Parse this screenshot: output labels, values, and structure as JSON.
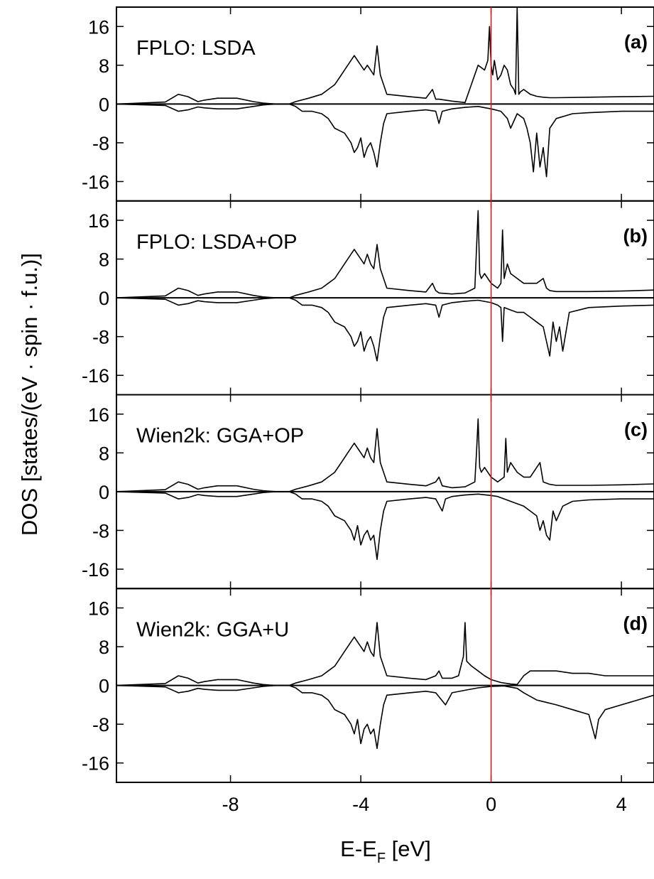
{
  "chart_data": {
    "type": "line",
    "xlabel": "E-E",
    "xlabel_sub": "F",
    "xlabel_unit": " [eV]",
    "ylabel": "DOS [states/(eV · spin · f.u.)]",
    "xlim": [
      -11.5,
      5
    ],
    "ylim": [
      -20,
      20
    ],
    "xticks": [
      -8,
      -4,
      0,
      4
    ],
    "yticks": [
      16,
      8,
      0,
      -8,
      -16
    ],
    "grid": false,
    "fermi_line": {
      "x": 0,
      "color": "#d62020"
    },
    "panels": [
      {
        "label": "FPLO: LSDA",
        "tag": "(a)",
        "series": [
          {
            "x": [
              -11.5,
              -10,
              -9.6,
              -9.3,
              -9,
              -8.8,
              -8.4,
              -7.8,
              -7.3,
              -7,
              -6.6,
              -6.2,
              -6,
              -5.6,
              -5.2,
              -5,
              -4.8,
              -4.6,
              -4.4,
              -4.2,
              -4.1,
              -4,
              -3.9,
              -3.8,
              -3.7,
              -3.6,
              -3.5,
              -3.4,
              -3.3,
              -3.2,
              -2.5,
              -2,
              -1.8,
              -1.7,
              -1.6,
              -1.2,
              -0.8,
              -0.4,
              -0.2,
              -0.1,
              -0.05,
              0,
              0.05,
              0.1,
              0.2,
              0.3,
              0.4,
              0.5,
              0.6,
              0.7,
              0.75,
              0.8,
              0.85,
              0.9,
              1,
              1.2,
              1.4,
              1.6,
              1.8,
              2,
              3,
              4,
              5
            ],
            "values": [
              0,
              0.4,
              2,
              1.5,
              0.5,
              0.8,
              1.2,
              1.2,
              0.5,
              0.2,
              0,
              0,
              0.5,
              1.2,
              2,
              3,
              4,
              6,
              8,
              10,
              9,
              8,
              7,
              8,
              7,
              6,
              12,
              6,
              4,
              2,
              1.5,
              1.2,
              3,
              1,
              1,
              0.6,
              0.3,
              8,
              7,
              9,
              16,
              8,
              6,
              9,
              5,
              6,
              8,
              7,
              4,
              3,
              2,
              20,
              2,
              2.5,
              3,
              2,
              1.6,
              1.4,
              1.3,
              1.3,
              1.4,
              1.5,
              1.6
            ]
          },
          {
            "x": [
              -11.5,
              -10,
              -9.6,
              -9.3,
              -9,
              -8.8,
              -8.4,
              -7.8,
              -7.3,
              -7,
              -6.6,
              -6.2,
              -6,
              -5.8,
              -5.5,
              -5.2,
              -5,
              -4.8,
              -4.5,
              -4.3,
              -4.2,
              -4.1,
              -4,
              -3.9,
              -3.8,
              -3.7,
              -3.6,
              -3.5,
              -3.4,
              -3.3,
              -3.2,
              -2.5,
              -2,
              -1.7,
              -1.6,
              -1.5,
              -1.2,
              -0.8,
              -0.4,
              0,
              0.3,
              0.5,
              0.6,
              0.8,
              1,
              1.1,
              1.2,
              1.3,
              1.4,
              1.5,
              1.6,
              1.7,
              1.8,
              2,
              2.5,
              3,
              4,
              5
            ],
            "values": [
              0,
              -0.3,
              -1.5,
              -1.2,
              -0.6,
              -0.8,
              -1,
              -1,
              -0.5,
              -0.2,
              0,
              0,
              -0.5,
              -1.5,
              -1.5,
              -2,
              -3,
              -5,
              -6,
              -8,
              -10,
              -9,
              -7,
              -11,
              -9,
              -8,
              -10,
              -13,
              -8,
              -4,
              -2,
              -1.5,
              -1.2,
              -1.5,
              -4,
              -1.5,
              -1,
              -0.7,
              -0.5,
              -1,
              -1.5,
              -3,
              -5,
              -2,
              -3,
              -5,
              -8,
              -14,
              -6,
              -13,
              -9,
              -15,
              -5,
              -3,
              -2,
              -1.8,
              -1.5,
              -1.5
            ]
          }
        ]
      },
      {
        "label": "FPLO: LSDA+OP",
        "tag": "(b)",
        "series": [
          {
            "x": [
              -11.5,
              -10,
              -9.6,
              -9.3,
              -9,
              -8.8,
              -8.4,
              -7.8,
              -7.3,
              -7,
              -6.6,
              -6.2,
              -6,
              -5.6,
              -5.2,
              -5,
              -4.8,
              -4.6,
              -4.4,
              -4.2,
              -4.1,
              -4,
              -3.9,
              -3.8,
              -3.7,
              -3.6,
              -3.5,
              -3.4,
              -3.3,
              -3.2,
              -2.5,
              -2,
              -1.8,
              -1.7,
              -1.6,
              -1.2,
              -0.8,
              -0.5,
              -0.45,
              -0.4,
              -0.35,
              -0.3,
              -0.2,
              0,
              0.2,
              0.3,
              0.35,
              0.4,
              0.5,
              0.6,
              0.8,
              1,
              1.2,
              1.4,
              1.6,
              1.7,
              1.8,
              2,
              3,
              4,
              5
            ],
            "values": [
              0,
              0.4,
              2,
              1.5,
              0.5,
              0.8,
              1.2,
              1.2,
              0.5,
              0.2,
              0,
              0,
              0.5,
              1.2,
              2,
              3,
              4,
              6,
              8,
              10,
              9,
              8,
              7,
              9,
              7,
              6,
              11,
              6,
              4,
              2,
              1.5,
              1.2,
              3,
              1.5,
              1,
              0.8,
              1,
              2,
              10,
              18,
              5,
              4,
              5,
              3,
              2,
              3,
              14,
              4,
              7,
              5,
              4,
              3,
              3,
              3,
              4,
              2,
              1.5,
              1.3,
              1.3,
              1.4,
              1.6
            ]
          },
          {
            "x": [
              -11.5,
              -10,
              -9.6,
              -9.3,
              -9,
              -8.8,
              -8.4,
              -7.8,
              -7.3,
              -7,
              -6.6,
              -6.2,
              -6,
              -5.8,
              -5.5,
              -5.2,
              -5,
              -4.8,
              -4.5,
              -4.3,
              -4.2,
              -4.1,
              -4,
              -3.9,
              -3.8,
              -3.7,
              -3.6,
              -3.5,
              -3.4,
              -3.3,
              -3.2,
              -2.5,
              -2,
              -1.7,
              -1.6,
              -1.5,
              -1.2,
              -0.8,
              -0.4,
              0,
              0.2,
              0.3,
              0.35,
              0.4,
              0.6,
              0.8,
              1,
              1.2,
              1.4,
              1.6,
              1.7,
              1.8,
              1.9,
              2,
              2.1,
              2.2,
              2.4,
              3,
              4,
              5
            ],
            "values": [
              0,
              -0.3,
              -1.5,
              -1.2,
              -0.6,
              -0.8,
              -1,
              -1,
              -0.5,
              -0.2,
              0,
              0,
              -0.5,
              -1.5,
              -1.5,
              -2,
              -3,
              -5,
              -6,
              -8,
              -10,
              -9,
              -7,
              -11,
              -9,
              -8,
              -10,
              -13,
              -8,
              -4,
              -2,
              -1.5,
              -1.2,
              -1.5,
              -4,
              -1.5,
              -1,
              -0.7,
              -0.5,
              -1,
              -1.5,
              -2,
              -9,
              -2,
              -2.5,
              -3,
              -3,
              -4,
              -5,
              -6,
              -9,
              -12,
              -5,
              -9,
              -6,
              -11,
              -3,
              -2,
              -1.7,
              -1.5
            ]
          }
        ]
      },
      {
        "label": "Wien2k: GGA+OP",
        "tag": "(c)",
        "series": [
          {
            "x": [
              -11.5,
              -10,
              -9.6,
              -9.3,
              -9,
              -8.8,
              -8.4,
              -7.8,
              -7.3,
              -7,
              -6.6,
              -6.2,
              -6,
              -5.6,
              -5.2,
              -5,
              -4.8,
              -4.6,
              -4.4,
              -4.2,
              -4.1,
              -4,
              -3.9,
              -3.8,
              -3.7,
              -3.6,
              -3.5,
              -3.4,
              -3.3,
              -3.2,
              -2.5,
              -2,
              -1.7,
              -1.6,
              -1.5,
              -1.2,
              -0.8,
              -0.5,
              -0.45,
              -0.4,
              -0.35,
              -0.3,
              -0.2,
              0,
              0.2,
              0.4,
              0.45,
              0.5,
              0.6,
              0.8,
              1,
              1.2,
              1.4,
              1.5,
              1.6,
              1.8,
              2,
              3,
              4,
              5
            ],
            "values": [
              0,
              0.4,
              2,
              1.5,
              0.5,
              0.8,
              1.2,
              1.2,
              0.5,
              0.2,
              0,
              0,
              0.5,
              1.2,
              2,
              3,
              4,
              6,
              8,
              10,
              9,
              8,
              7,
              9,
              7,
              6,
              13,
              6,
              4,
              2,
              1.5,
              1.2,
              2,
              3,
              1.2,
              0.8,
              1,
              2,
              8,
              15,
              5,
              4,
              5,
              3,
              2,
              3,
              11,
              4,
              6,
              4,
              3,
              3,
              5,
              6,
              2,
              1.5,
              1.3,
              1.3,
              1.4,
              1.6
            ]
          },
          {
            "x": [
              -11.5,
              -10,
              -9.6,
              -9.3,
              -9,
              -8.8,
              -8.4,
              -7.8,
              -7.3,
              -7,
              -6.6,
              -6.2,
              -6,
              -5.8,
              -5.5,
              -5.2,
              -5,
              -4.8,
              -4.5,
              -4.3,
              -4.2,
              -4.1,
              -4,
              -3.9,
              -3.8,
              -3.7,
              -3.6,
              -3.5,
              -3.4,
              -3.3,
              -3.2,
              -2.5,
              -2,
              -1.7,
              -1.5,
              -1.4,
              -1.2,
              -0.8,
              -0.4,
              0,
              0.2,
              0.4,
              0.6,
              0.8,
              1,
              1.2,
              1.4,
              1.5,
              1.6,
              1.7,
              1.8,
              1.9,
              2,
              2.2,
              2.5,
              3,
              4,
              5
            ],
            "values": [
              0,
              -0.3,
              -1.5,
              -1.2,
              -0.6,
              -0.8,
              -1,
              -1,
              -0.5,
              -0.2,
              0,
              0,
              -0.5,
              -1.5,
              -1.5,
              -2,
              -3,
              -5,
              -6,
              -8,
              -10,
              -7,
              -11,
              -9,
              -8,
              -10,
              -9,
              -14,
              -8,
              -4,
              -2,
              -1.5,
              -1.2,
              -1.5,
              -4,
              -1.5,
              -1,
              -0.7,
              -0.5,
              -0.8,
              -1,
              -1.5,
              -2,
              -2.5,
              -3,
              -4,
              -5,
              -8,
              -6,
              -9,
              -10,
              -4,
              -6,
              -3,
              -2,
              -1.7,
              -1.5,
              -1.5
            ]
          }
        ]
      },
      {
        "label": "Wien2k: GGA+U",
        "tag": "(d)",
        "series": [
          {
            "x": [
              -11.5,
              -10,
              -9.6,
              -9.3,
              -9,
              -8.8,
              -8.4,
              -7.8,
              -7.3,
              -7,
              -6.6,
              -6.2,
              -6,
              -5.6,
              -5.2,
              -5,
              -4.8,
              -4.6,
              -4.4,
              -4.2,
              -4.1,
              -4,
              -3.9,
              -3.8,
              -3.7,
              -3.6,
              -3.5,
              -3.4,
              -3.3,
              -3.2,
              -2.5,
              -2,
              -1.7,
              -1.6,
              -1.5,
              -1.2,
              -1,
              -0.85,
              -0.8,
              -0.75,
              -0.6,
              -0.4,
              -0.2,
              0,
              0.3,
              0.6,
              0.8,
              1,
              1.2,
              1.5,
              2,
              2.5,
              3,
              3.5,
              4,
              4.5,
              5
            ],
            "values": [
              0,
              0.4,
              2,
              1.5,
              0.5,
              0.8,
              1.2,
              1.2,
              0.5,
              0.2,
              0,
              0,
              0.5,
              1.2,
              2,
              3,
              4,
              6,
              8,
              10,
              9,
              8,
              7,
              9,
              7,
              6,
              13,
              6,
              4,
              2,
              1.5,
              1.2,
              2,
              3,
              1.5,
              1.5,
              2,
              6,
              13,
              5,
              4,
              3,
              2,
              1.2,
              0.6,
              0.3,
              0.2,
              2,
              3,
              3,
              3,
              2.5,
              2.5,
              2,
              2,
              2,
              2
            ]
          },
          {
            "x": [
              -11.5,
              -10,
              -9.6,
              -9.3,
              -9,
              -8.8,
              -8.4,
              -7.8,
              -7.3,
              -7,
              -6.6,
              -6.2,
              -6,
              -5.8,
              -5.5,
              -5.2,
              -5,
              -4.8,
              -4.5,
              -4.3,
              -4.2,
              -4.1,
              -4,
              -3.9,
              -3.8,
              -3.7,
              -3.6,
              -3.5,
              -3.4,
              -3.3,
              -3.2,
              -2.5,
              -2,
              -1.7,
              -1.4,
              -1.2,
              -0.8,
              -0.4,
              0,
              0.4,
              0.8,
              1,
              1.4,
              2,
              2.5,
              3,
              3.2,
              3.3,
              3.5,
              4,
              4.5,
              5
            ],
            "values": [
              0,
              -0.3,
              -1.5,
              -1.2,
              -0.6,
              -0.8,
              -1,
              -1,
              -0.5,
              -0.2,
              0,
              0,
              -0.5,
              -1.5,
              -1.5,
              -2,
              -3,
              -5,
              -6,
              -8,
              -10,
              -7,
              -12,
              -9,
              -8,
              -10,
              -9,
              -13,
              -8,
              -4,
              -2,
              -1.5,
              -1.2,
              -1.5,
              -4,
              -1.5,
              -1,
              -0.5,
              -0.2,
              -0.1,
              -0.6,
              -1.5,
              -3,
              -4,
              -5,
              -6,
              -11,
              -7,
              -5,
              -4,
              -3,
              -2
            ]
          }
        ]
      }
    ]
  }
}
